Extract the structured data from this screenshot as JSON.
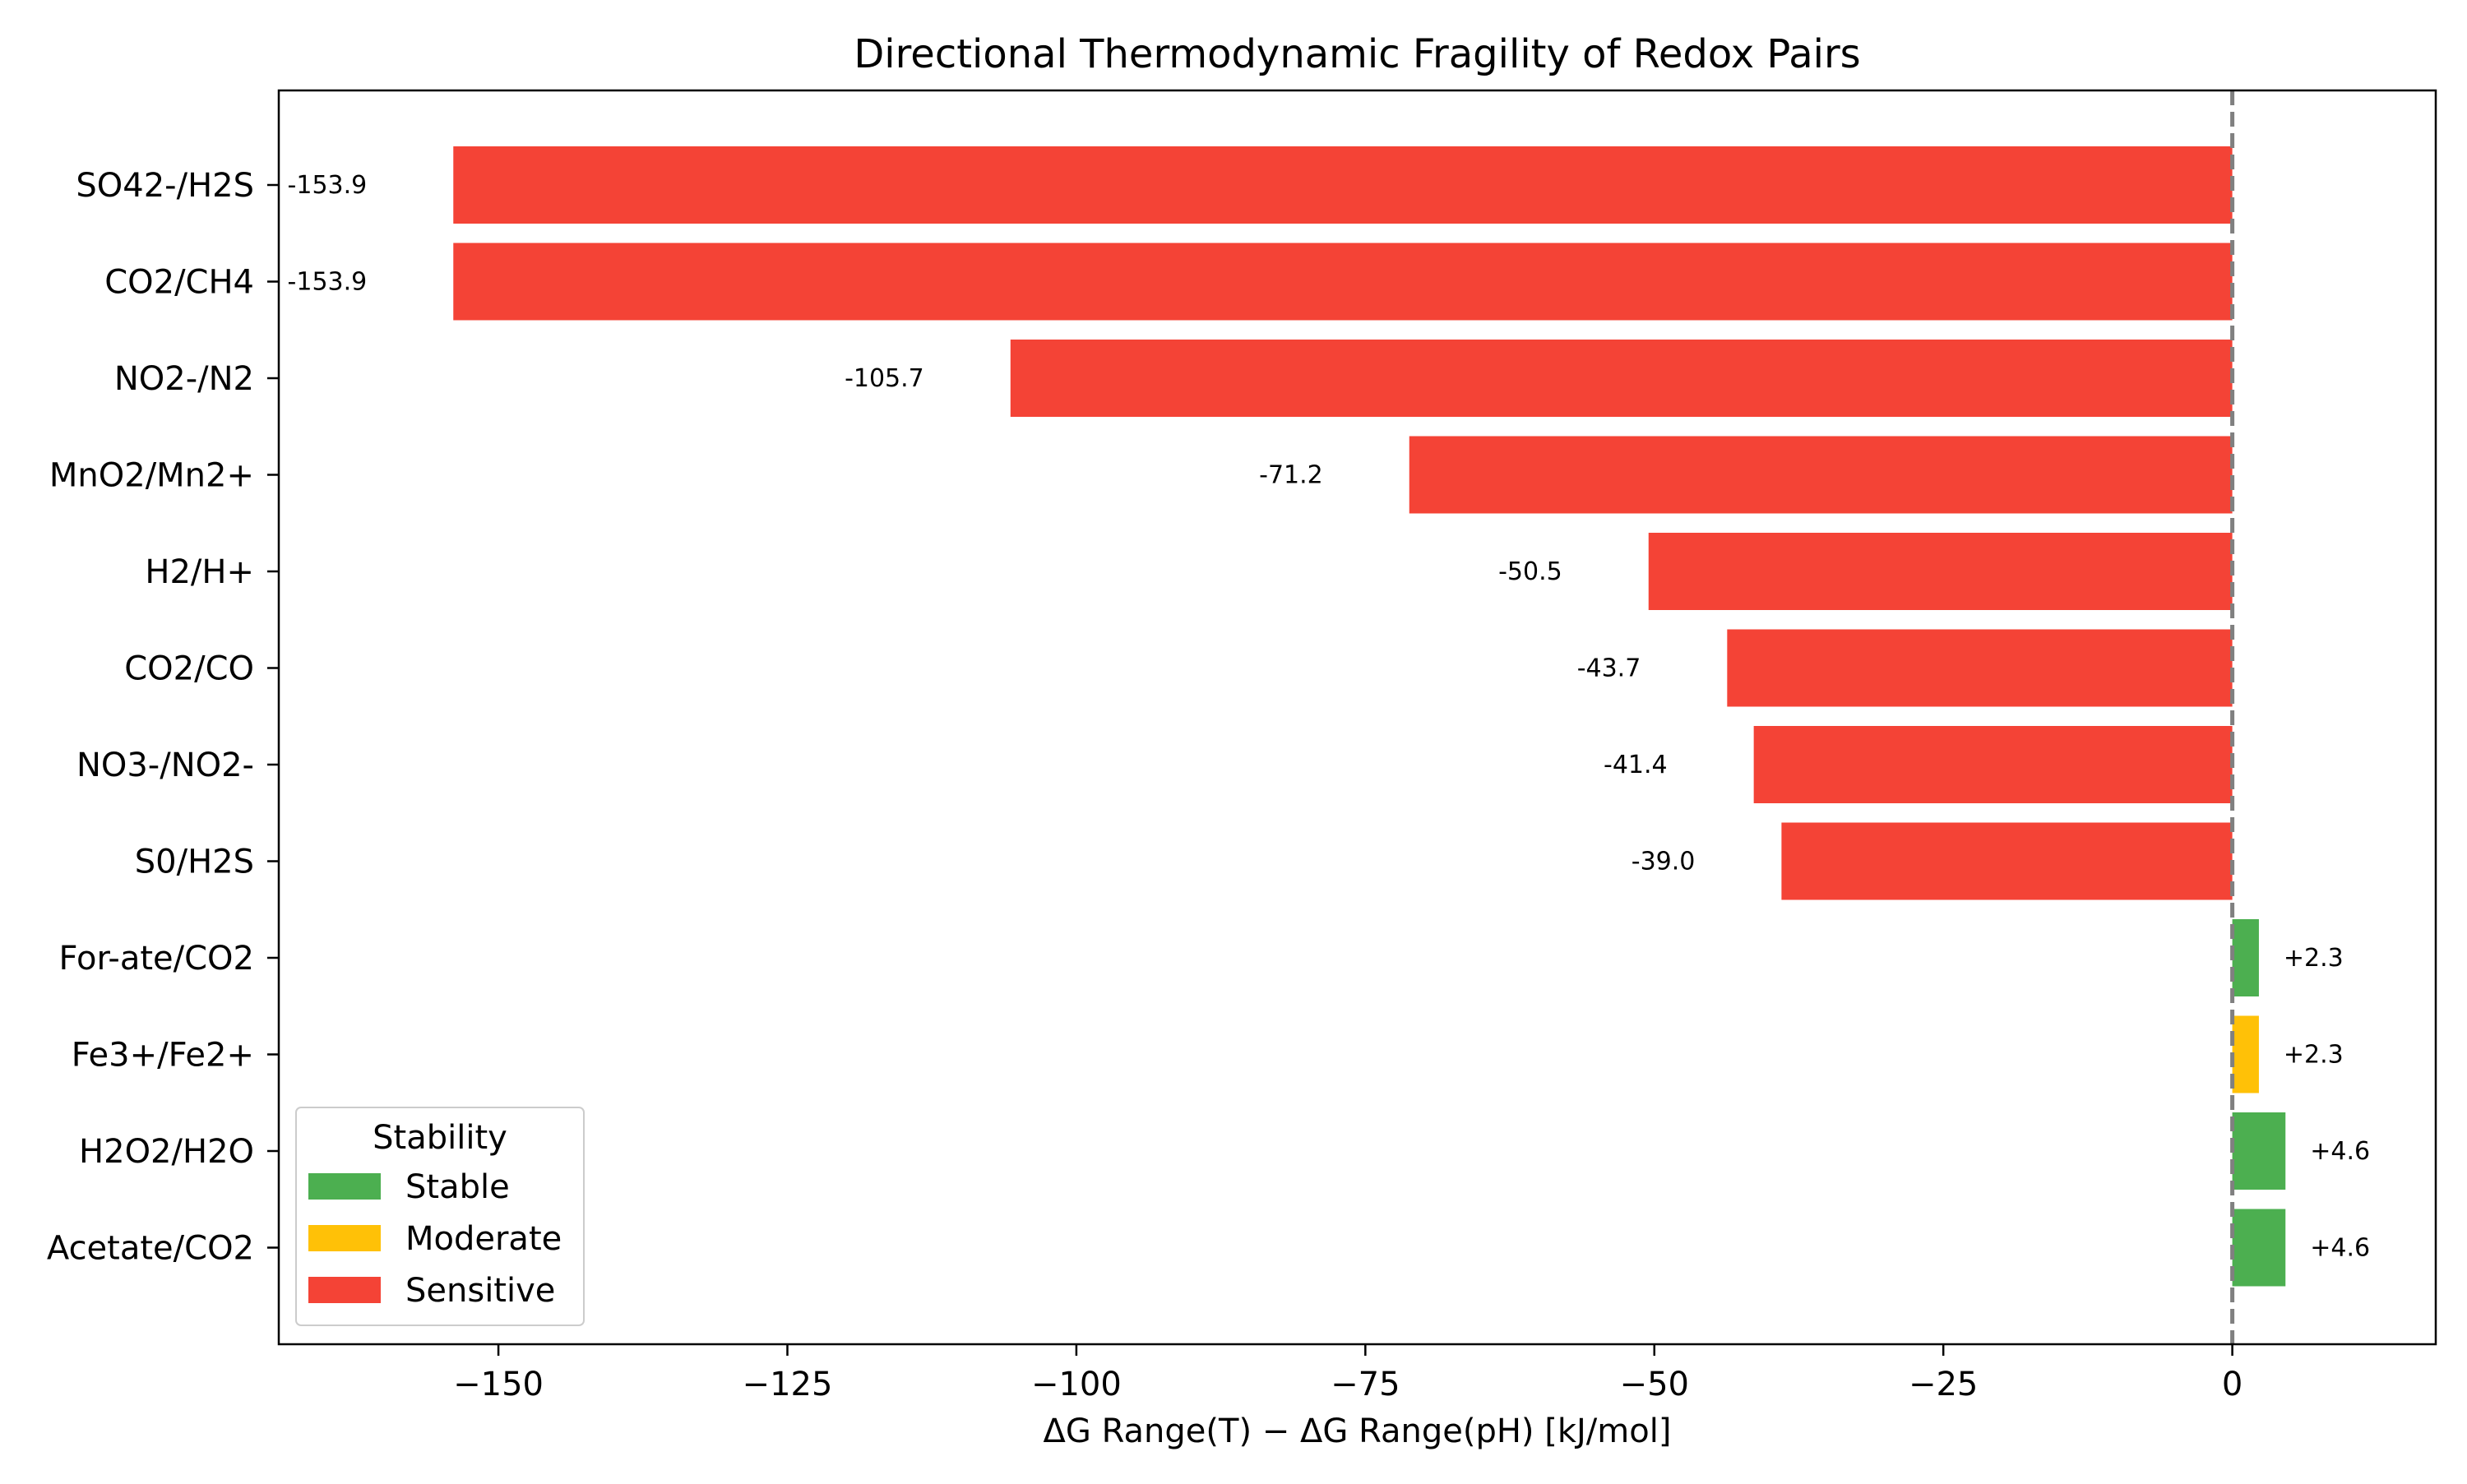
{
  "chart_data": {
    "type": "bar",
    "orientation": "horizontal",
    "title": "Directional Thermodynamic Fragility of Redox Pairs",
    "xlabel": "ΔG Range(T) − ΔG Range(pH) [kJ/mol]",
    "ylabel": "",
    "xlim": [
      -169,
      17.6
    ],
    "xticks": [
      -150,
      -125,
      -100,
      -75,
      -50,
      -25,
      0
    ],
    "xtick_labels": [
      "−150",
      "−125",
      "−100",
      "−75",
      "−50",
      "−25",
      "0"
    ],
    "reference_line": 0,
    "grid": false,
    "categories": [
      "SO42-/H2S",
      "CO2/CH4",
      "NO2-/N2",
      "MnO2/Mn2+",
      "H2/H+",
      "CO2/CO",
      "NO3-/NO2-",
      "S0/H2S",
      "For-ate/CO2",
      "Fe3+/Fe2+",
      "H2O2/H2O",
      "Acetate/CO2"
    ],
    "values": [
      -153.9,
      -153.9,
      -105.7,
      -71.2,
      -50.5,
      -43.7,
      -41.4,
      -39.0,
      2.3,
      2.3,
      4.6,
      4.6
    ],
    "value_labels": [
      "-153.9",
      "-153.9",
      "-105.7",
      "-71.2",
      "-50.5",
      "-43.7",
      "-41.4",
      "-39.0",
      "+2.3",
      "+2.3",
      "+4.6",
      "+4.6"
    ],
    "stability": [
      "Sensitive",
      "Sensitive",
      "Sensitive",
      "Sensitive",
      "Sensitive",
      "Sensitive",
      "Sensitive",
      "Sensitive",
      "Stable",
      "Moderate",
      "Stable",
      "Stable"
    ],
    "colors": {
      "Stable": "#4caf50",
      "Moderate": "#ffc107",
      "Sensitive": "#f44336"
    },
    "legend": {
      "title": "Stability",
      "placement": "lower-left",
      "entries": [
        "Stable",
        "Moderate",
        "Sensitive"
      ]
    }
  }
}
